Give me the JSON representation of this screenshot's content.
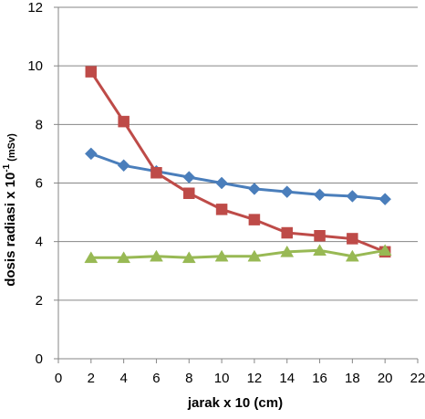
{
  "chart_data": {
    "type": "line",
    "xlabel": "jarak x 10 (cm)",
    "ylabel": {
      "main": "dosis radiasi x 10",
      "superscript": "-1",
      "unit": "(mSv)"
    },
    "xlim": [
      0,
      22
    ],
    "ylim": [
      0,
      12
    ],
    "x_ticks": [
      0,
      2,
      4,
      6,
      8,
      10,
      12,
      14,
      16,
      18,
      20,
      22
    ],
    "y_ticks": [
      0,
      2,
      4,
      6,
      8,
      10,
      12
    ],
    "x_tick_labels": [
      "0",
      "2",
      "4",
      "6",
      "8",
      "10",
      "12",
      "14",
      "16",
      "18",
      "20",
      "22"
    ],
    "y_tick_labels": [
      "0",
      "2",
      "4",
      "6",
      "8",
      "10",
      "12"
    ],
    "grid": "horizontal",
    "legend": "none",
    "series": [
      {
        "color": "#4a7ebb",
        "marker": "diamond",
        "x": [
          2,
          4,
          6,
          8,
          10,
          12,
          14,
          16,
          18,
          20
        ],
        "y": [
          7.0,
          6.6,
          6.4,
          6.2,
          6.0,
          5.8,
          5.7,
          5.6,
          5.55,
          5.45
        ]
      },
      {
        "color": "#be4b48",
        "marker": "square",
        "x": [
          2,
          4,
          6,
          8,
          10,
          12,
          14,
          16,
          18,
          20
        ],
        "y": [
          9.8,
          8.1,
          6.35,
          5.65,
          5.1,
          4.75,
          4.3,
          4.2,
          4.1,
          3.65
        ]
      },
      {
        "color": "#98b954",
        "marker": "triangle",
        "x": [
          2,
          4,
          6,
          8,
          10,
          12,
          14,
          16,
          18,
          20
        ],
        "y": [
          3.45,
          3.45,
          3.5,
          3.45,
          3.5,
          3.5,
          3.65,
          3.7,
          3.5,
          3.7
        ]
      }
    ]
  }
}
